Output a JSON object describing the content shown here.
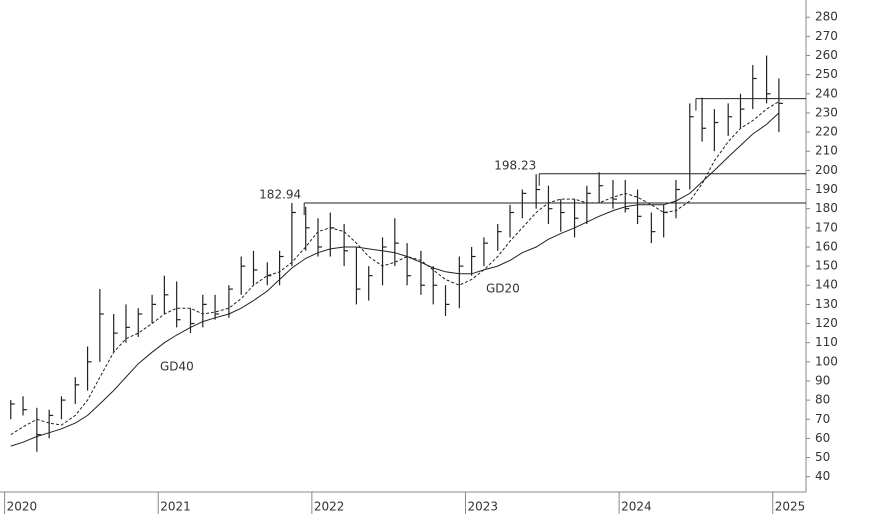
{
  "chart_data": {
    "type": "ohlc",
    "x": [
      2020.04,
      2020.12,
      2020.21,
      2020.29,
      2020.37,
      2020.46,
      2020.54,
      2020.62,
      2020.71,
      2020.79,
      2020.87,
      2020.96,
      2021.04,
      2021.12,
      2021.21,
      2021.29,
      2021.37,
      2021.46,
      2021.54,
      2021.62,
      2021.71,
      2021.79,
      2021.87,
      2021.96,
      2022.04,
      2022.12,
      2022.21,
      2022.29,
      2022.37,
      2022.46,
      2022.54,
      2022.62,
      2022.71,
      2022.79,
      2022.87,
      2022.96,
      2023.04,
      2023.12,
      2023.21,
      2023.29,
      2023.37,
      2023.46,
      2023.54,
      2023.62,
      2023.71,
      2023.79,
      2023.87,
      2023.96,
      2024.04,
      2024.12,
      2024.21,
      2024.29,
      2024.37,
      2024.46,
      2024.54,
      2024.62,
      2024.71,
      2024.79,
      2024.87,
      2024.96,
      2025.04
    ],
    "high": [
      80,
      82,
      76,
      75,
      82,
      92,
      108,
      138,
      125,
      130,
      128,
      135,
      145,
      142,
      128,
      135,
      135,
      140,
      155,
      158,
      152,
      158,
      183,
      181,
      175,
      178,
      172,
      160,
      150,
      165,
      175,
      162,
      158,
      150,
      140,
      155,
      160,
      165,
      172,
      182,
      190,
      198,
      192,
      185,
      185,
      192,
      199,
      195,
      195,
      190,
      178,
      182,
      195,
      235,
      238,
      232,
      235,
      240,
      255,
      260,
      248
    ],
    "low": [
      70,
      72,
      53,
      60,
      70,
      78,
      85,
      100,
      105,
      110,
      113,
      120,
      125,
      118,
      115,
      118,
      122,
      123,
      135,
      140,
      140,
      140,
      150,
      158,
      155,
      155,
      150,
      130,
      132,
      140,
      150,
      140,
      135,
      130,
      124,
      128,
      145,
      150,
      158,
      165,
      175,
      180,
      172,
      168,
      165,
      172,
      183,
      180,
      178,
      172,
      162,
      165,
      175,
      190,
      215,
      210,
      218,
      222,
      232,
      235,
      220
    ],
    "close": [
      78,
      75,
      62,
      72,
      80,
      88,
      100,
      125,
      115,
      118,
      125,
      130,
      135,
      122,
      120,
      130,
      125,
      138,
      150,
      148,
      145,
      155,
      178,
      170,
      160,
      170,
      158,
      138,
      145,
      160,
      162,
      145,
      140,
      140,
      130,
      150,
      155,
      162,
      168,
      178,
      188,
      190,
      180,
      178,
      175,
      188,
      192,
      185,
      180,
      176,
      168,
      178,
      190,
      228,
      222,
      225,
      228,
      232,
      248,
      240,
      235
    ],
    "color": "#222222",
    "lines": [
      {
        "name": "GD20",
        "style": "dashed",
        "color": "#222222",
        "values": [
          62,
          66,
          70,
          68,
          67,
          72,
          80,
          92,
          105,
          112,
          115,
          120,
          125,
          128,
          128,
          125,
          126,
          128,
          133,
          140,
          145,
          147,
          152,
          160,
          168,
          170,
          168,
          162,
          155,
          150,
          152,
          155,
          153,
          148,
          143,
          140,
          143,
          148,
          155,
          163,
          170,
          178,
          183,
          185,
          185,
          183,
          183,
          186,
          188,
          186,
          182,
          178,
          179,
          184,
          193,
          205,
          215,
          222,
          226,
          232,
          236
        ]
      },
      {
        "name": "GD40",
        "style": "solid",
        "color": "#222222",
        "values": [
          56,
          58,
          61,
          63,
          65,
          68,
          72,
          78,
          85,
          92,
          99,
          105,
          110,
          114,
          118,
          121,
          123,
          125,
          128,
          132,
          137,
          143,
          149,
          154,
          157,
          159,
          160,
          160,
          159,
          158,
          157,
          155,
          152,
          149,
          147,
          146,
          146,
          148,
          150,
          153,
          157,
          160,
          164,
          167,
          170,
          173,
          176,
          179,
          181,
          182,
          182,
          182,
          184,
          188,
          194,
          200,
          207,
          213,
          219,
          224,
          230
        ]
      }
    ],
    "levels": [
      {
        "value": 182.94,
        "start": 2021.95,
        "labeled": true
      },
      {
        "value": 198.23,
        "start": 2023.48,
        "labeled": true
      },
      {
        "value": 237.5,
        "start": 2024.5,
        "labeled": false
      }
    ],
    "xlim": [
      2019.97,
      2025.21
    ],
    "xticks": [
      2020,
      2021,
      2022,
      2023,
      2024,
      2025
    ],
    "ylim": [
      32,
      289
    ],
    "yticks": [
      40,
      50,
      60,
      70,
      80,
      90,
      100,
      110,
      120,
      130,
      140,
      150,
      160,
      170,
      180,
      190,
      200,
      210,
      220,
      230,
      240,
      250,
      260,
      270,
      280
    ]
  }
}
